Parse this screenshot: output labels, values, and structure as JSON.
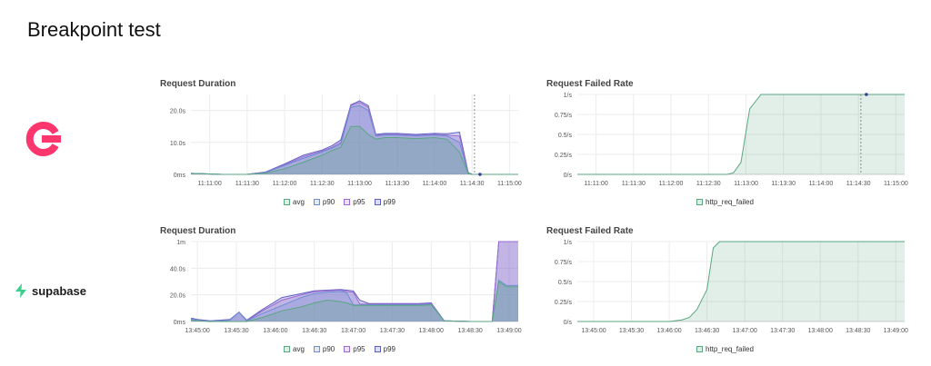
{
  "page": {
    "title": "Breakpoint test"
  },
  "logos": {
    "supabase_word": "supabase"
  },
  "colors": {
    "avg": "#5aa782",
    "p90": "#6b8fd1",
    "p95": "#9b6ad0",
    "p99": "#5f5ec4",
    "failed": "#5aa782",
    "grid": "#ececec"
  },
  "chart_data": [
    {
      "id": "appwrite-duration",
      "type": "area",
      "title": "Request Duration",
      "y_ticks": [
        "0ms",
        "10.0s",
        "20.0s"
      ],
      "y_tick_values": [
        0,
        10,
        20
      ],
      "ylim": [
        0,
        25
      ],
      "x_ticks": [
        "11:11:00",
        "11:11:30",
        "11:12:00",
        "11:12:30",
        "11:13:00",
        "11:13:30",
        "11:14:00",
        "11:14:30",
        "11:15:00"
      ],
      "x_tick_values": [
        30,
        60,
        90,
        120,
        150,
        180,
        210,
        240,
        270
      ],
      "xlim": [
        15,
        277
      ],
      "x": [
        15,
        40,
        60,
        75,
        90,
        105,
        120,
        128,
        135,
        143,
        150,
        157,
        163,
        170,
        180,
        195,
        210,
        220,
        230,
        237,
        240,
        245,
        255,
        265,
        277
      ],
      "series": [
        {
          "name": "avg",
          "values": [
            0.3,
            0,
            0,
            0.4,
            1.8,
            3.8,
            6,
            7.5,
            8.5,
            15,
            15,
            12.5,
            11,
            11.5,
            11.5,
            11.2,
            11.5,
            11,
            7,
            0.2,
            0,
            0,
            0,
            0,
            0
          ]
        },
        {
          "name": "p90",
          "values": [
            0.3,
            0,
            0,
            0.6,
            2.8,
            5,
            7,
            8.2,
            9.5,
            21,
            21.5,
            20,
            12,
            12.3,
            12.3,
            12,
            12.3,
            12,
            10,
            0.4,
            0,
            0,
            0,
            0,
            0
          ]
        },
        {
          "name": "p95",
          "values": [
            0.3,
            0,
            0,
            0.7,
            3,
            5.5,
            7.3,
            8.5,
            10,
            21.5,
            22.5,
            21,
            12.3,
            12.5,
            12.5,
            12.2,
            12.5,
            12.3,
            12,
            0.5,
            0,
            0,
            0,
            0,
            0
          ]
        },
        {
          "name": "p99",
          "values": [
            0.3,
            0,
            0,
            0.8,
            3.3,
            6,
            7.6,
            9,
            10.8,
            21.8,
            23,
            21.5,
            12.5,
            12.8,
            12.8,
            12.5,
            12.8,
            12.7,
            13.2,
            0.6,
            0,
            0,
            0,
            0,
            0
          ]
        }
      ],
      "legend": [
        "avg",
        "p90",
        "p95",
        "p99"
      ],
      "cursor_x": 242
    },
    {
      "id": "appwrite-failed",
      "type": "area",
      "title": "Request Failed Rate",
      "y_ticks": [
        "0/s",
        "0.25/s",
        "0.5/s",
        "0.75/s",
        "1/s"
      ],
      "y_tick_values": [
        0,
        0.25,
        0.5,
        0.75,
        1
      ],
      "ylim": [
        0,
        1
      ],
      "x_ticks": [
        "11:11:00",
        "11:11:30",
        "11:12:00",
        "11:12:30",
        "11:13:00",
        "11:13:30",
        "11:14:00",
        "11:14:30",
        "11:15:00"
      ],
      "x_tick_values": [
        30,
        60,
        90,
        120,
        150,
        180,
        210,
        240,
        270
      ],
      "xlim": [
        15,
        277
      ],
      "x": [
        15,
        90,
        135,
        140,
        146,
        153,
        162,
        175,
        277
      ],
      "series": [
        {
          "name": "http_req_failed",
          "values": [
            0,
            0,
            0,
            0.02,
            0.15,
            0.82,
            1,
            1,
            1
          ]
        }
      ],
      "legend": [
        "http_req_failed"
      ],
      "cursor_x": 242
    },
    {
      "id": "supabase-duration",
      "type": "area",
      "title": "Request Duration",
      "y_ticks": [
        "0ms",
        "20.0s",
        "40.0s",
        "1m"
      ],
      "y_tick_values": [
        0,
        20,
        40,
        60
      ],
      "ylim": [
        0,
        60
      ],
      "x_ticks": [
        "13:45:00",
        "13:45:30",
        "13:46:00",
        "13:46:30",
        "13:47:00",
        "13:47:30",
        "13:48:00",
        "13:48:30",
        "13:49:00"
      ],
      "x_tick_values": [
        30,
        60,
        90,
        120,
        150,
        180,
        210,
        240,
        270
      ],
      "xlim": [
        25,
        277
      ],
      "x": [
        25,
        30,
        40,
        55,
        62,
        68,
        80,
        95,
        110,
        120,
        130,
        140,
        145,
        150,
        155,
        162,
        180,
        200,
        210,
        220,
        240,
        246,
        250,
        257,
        262,
        268,
        277
      ],
      "series": [
        {
          "name": "avg",
          "values": [
            1,
            0.5,
            0,
            0,
            0,
            0,
            3,
            8,
            11,
            14,
            16,
            15,
            14,
            12,
            12,
            12,
            12,
            12,
            12.5,
            0.5,
            0,
            0,
            0,
            0,
            30,
            26,
            26
          ]
        },
        {
          "name": "p90",
          "values": [
            2,
            1,
            0,
            1,
            7,
            0.5,
            6,
            12,
            18,
            21,
            22,
            22.5,
            21.5,
            12.5,
            12.5,
            12.5,
            12.5,
            12.5,
            13,
            0.5,
            0,
            0,
            0,
            0,
            31,
            27,
            27
          ]
        },
        {
          "name": "p95",
          "values": [
            2,
            1,
            0,
            1,
            7,
            0.5,
            8,
            16,
            20,
            22.5,
            23,
            23.5,
            22.5,
            22,
            13,
            13,
            13,
            13,
            13.5,
            0.5,
            0,
            0,
            0,
            0,
            60,
            60,
            60
          ]
        },
        {
          "name": "p99",
          "values": [
            2.5,
            1.5,
            0.5,
            1.5,
            7,
            1,
            9,
            18,
            21,
            23,
            23.5,
            24,
            23.5,
            23,
            16,
            13.5,
            13.5,
            13.5,
            14,
            0.5,
            0,
            0,
            0,
            0,
            60,
            60,
            60
          ]
        }
      ],
      "legend": [
        "avg",
        "p90",
        "p95",
        "p99"
      ]
    },
    {
      "id": "supabase-failed",
      "type": "area",
      "title": "Request Failed Rate",
      "y_ticks": [
        "0/s",
        "0.25/s",
        "0.5/s",
        "0.75/s",
        "1/s"
      ],
      "y_tick_values": [
        0,
        0.25,
        0.5,
        0.75,
        1
      ],
      "ylim": [
        0,
        1
      ],
      "x_ticks": [
        "13:45:00",
        "13:45:30",
        "13:46:00",
        "13:46:30",
        "13:47:00",
        "13:47:30",
        "13:48:00",
        "13:48:30",
        "13:49:00"
      ],
      "x_tick_values": [
        30,
        60,
        90,
        120,
        150,
        180,
        210,
        240,
        270
      ],
      "xlim": [
        17,
        277
      ],
      "x": [
        17,
        90,
        100,
        106,
        112,
        120,
        125,
        130,
        277
      ],
      "series": [
        {
          "name": "http_req_failed",
          "values": [
            0,
            0,
            0.02,
            0.05,
            0.15,
            0.4,
            0.92,
            1,
            1
          ]
        }
      ],
      "legend": [
        "http_req_failed"
      ]
    }
  ]
}
